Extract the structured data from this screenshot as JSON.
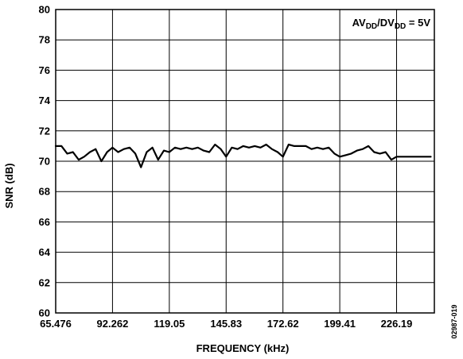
{
  "chart_data": {
    "type": "line",
    "xlabel": "FREQUENCY (kHz)",
    "ylabel": "SNR (dB)",
    "xlim": [
      65.476,
      244.0
    ],
    "ylim": [
      60,
      80
    ],
    "x_ticks": [
      65.476,
      92.262,
      119.05,
      145.83,
      172.62,
      199.41,
      226.19
    ],
    "x_tick_labels": [
      "65.476",
      "92.262",
      "119.05",
      "145.83",
      "172.62",
      "199.41",
      "226.19"
    ],
    "y_ticks": [
      60,
      62,
      64,
      66,
      68,
      70,
      72,
      74,
      76,
      78,
      80
    ],
    "y_tick_labels": [
      "60",
      "62",
      "64",
      "66",
      "68",
      "70",
      "72",
      "74",
      "76",
      "78",
      "80"
    ],
    "grid": true,
    "annotation": {
      "base1": "AV",
      "sub1": "DD",
      "mid": "/DV",
      "sub2": "DD",
      "tail": " = 5V",
      "position": "top-right"
    },
    "figure_id": "02987-019",
    "series": [
      {
        "color": "#000000",
        "x": [
          65.476,
          68.2,
          70.9,
          73.6,
          76.3,
          78.9,
          81.6,
          84.3,
          87.0,
          89.7,
          92.262,
          94.9,
          97.6,
          100.3,
          103.0,
          105.7,
          108.4,
          111.1,
          113.8,
          116.5,
          119.05,
          121.7,
          124.4,
          127.1,
          129.8,
          132.5,
          135.2,
          137.9,
          140.6,
          143.3,
          145.83,
          148.5,
          151.2,
          153.9,
          156.6,
          159.3,
          162.0,
          164.7,
          167.4,
          170.1,
          172.62,
          175.3,
          178.0,
          180.7,
          183.4,
          186.1,
          188.8,
          191.5,
          194.2,
          196.9,
          199.41,
          202.1,
          204.8,
          207.5,
          210.2,
          212.9,
          215.6,
          218.3,
          221.0,
          223.7,
          226.19,
          228.9,
          231.6,
          234.3,
          237.0,
          239.7,
          242.3
        ],
        "values": [
          71.0,
          71.0,
          70.5,
          70.6,
          70.1,
          70.3,
          70.6,
          70.8,
          70.0,
          70.6,
          70.9,
          70.6,
          70.8,
          70.9,
          70.5,
          69.6,
          70.6,
          70.9,
          70.1,
          70.7,
          70.6,
          70.9,
          70.8,
          70.9,
          70.8,
          70.9,
          70.7,
          70.6,
          71.1,
          70.8,
          70.3,
          70.9,
          70.8,
          71.0,
          70.9,
          71.0,
          70.9,
          71.1,
          70.8,
          70.6,
          70.3,
          71.1,
          71.0,
          71.0,
          71.0,
          70.8,
          70.9,
          70.8,
          70.9,
          70.5,
          70.3,
          70.4,
          70.5,
          70.7,
          70.8,
          71.0,
          70.6,
          70.5,
          70.6,
          70.1,
          70.3,
          70.3,
          70.3,
          70.3,
          70.3,
          70.3,
          70.3
        ]
      }
    ]
  }
}
